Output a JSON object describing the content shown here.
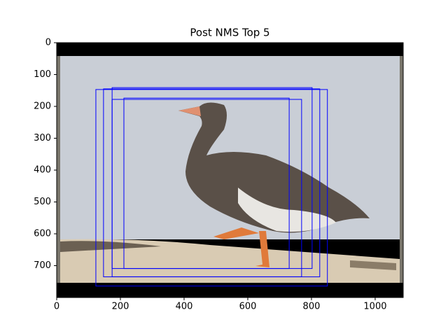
{
  "chart_data": {
    "type": "image",
    "title": "Post NMS Top 5",
    "xlim": [
      0,
      1088
    ],
    "ylim": [
      800,
      0
    ],
    "xticks": [
      0,
      200,
      400,
      600,
      800,
      1000
    ],
    "yticks": [
      0,
      100,
      200,
      300,
      400,
      500,
      600,
      700
    ],
    "color": "#0000ff",
    "boxes": [
      [
        123,
        147,
        850,
        764
      ],
      [
        147,
        145,
        826,
        735
      ],
      [
        174,
        141,
        802,
        709
      ],
      [
        174,
        178,
        769,
        735
      ],
      [
        211,
        174,
        730,
        709
      ]
    ]
  }
}
